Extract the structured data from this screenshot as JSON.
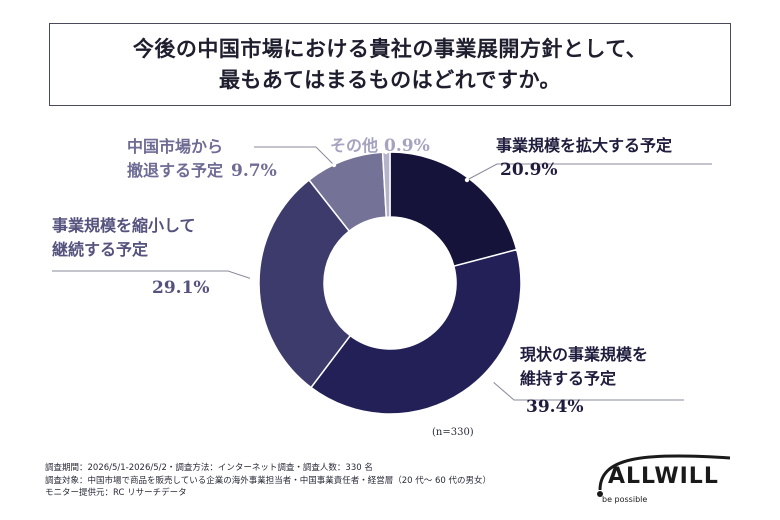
{
  "title": {
    "line1": "今後の中国市場における貴社の事業展開方針として、",
    "line2": "最もあてはまるものはどれですか。"
  },
  "chart_data": {
    "type": "pie",
    "donut": true,
    "categories": [
      "事業規模を拡大する予定",
      "現状の事業規模を維持する予定",
      "事業規模を縮小して継続する予定",
      "中国市場から撤退する予定",
      "その他"
    ],
    "values": [
      20.9,
      39.4,
      29.1,
      9.7,
      0.9
    ],
    "value_labels": [
      "20.9%",
      "39.4%",
      "29.1%",
      "9.7%",
      "0.9%"
    ],
    "colors": [
      "#15133a",
      "#232058",
      "#3d3a6c",
      "#747296",
      "#b4b3c9"
    ],
    "label_colors": [
      "#1f1d3d",
      "#1f1d3d",
      "#55537e",
      "#6e6c95",
      "#a4a3c0"
    ],
    "label_lines": [
      [
        "事業規模を拡大する予定"
      ],
      [
        "現状の事業規模を",
        "維持する予定"
      ],
      [
        "事業規模を縮小して",
        "継続する予定"
      ],
      [
        "中国市場から",
        "撤退する予定"
      ],
      [
        "その他"
      ]
    ],
    "n_note": "(n=330)"
  },
  "footnote": {
    "line1": "調査期間：2026/5/1-2026/5/2・調査方法：インターネット調査・調査人数：330 名",
    "line2": "調査対象：中国市場で商品を販売している企業の海外事業担当者・中国事業責任者・経営層（20 代～ 60 代の男女）",
    "line3": "モニター提供元：RC リサーチデータ"
  },
  "logo": {
    "name": "ALLWILL",
    "tagline": "be possible"
  }
}
